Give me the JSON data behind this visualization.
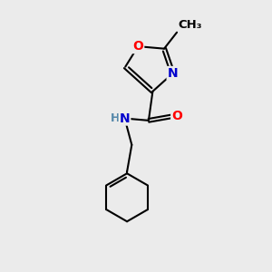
{
  "bg_color": "#ebebeb",
  "bond_color": "#000000",
  "bond_width": 1.5,
  "atom_colors": {
    "O": "#ff0000",
    "N": "#0000cd",
    "H": "#5588aa"
  },
  "font_size_atom": 10,
  "font_size_methyl": 9.5
}
